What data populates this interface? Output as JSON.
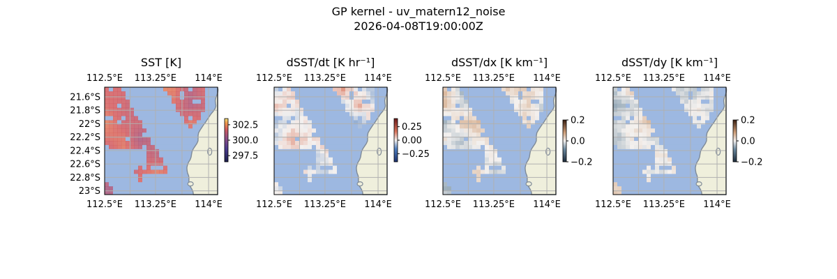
{
  "figure": {
    "title": "GP kernel - uv_matern12_noise",
    "subtitle": "2026-04-08T19:00:00Z"
  },
  "colors": {
    "ocean_mask": "#9db8e1",
    "land": "#efefdc",
    "coast": "#7f8a97",
    "grid": "#b0b0b0",
    "sst_low": "#6b4f8f",
    "sst_high": "#e0665c",
    "bal_neg": "#2f4a8a",
    "bal_pos": "#c64a3b"
  },
  "chart_data": [
    {
      "type": "heatmap",
      "title": "SST [K]",
      "xlim": [
        112.5,
        114.1
      ],
      "ylim": [
        -23.0,
        -21.5
      ],
      "xticks": [
        "112.5°E",
        "113.25°E",
        "114°E"
      ],
      "yticks": [
        "21.6°S",
        "21.8°S",
        "22°S",
        "22.2°S",
        "22.4°S",
        "22.6°S",
        "22.8°S",
        "23°S"
      ],
      "colorbar": {
        "ticks": [
          "302.5",
          "300.0",
          "297.5"
        ],
        "range": [
          296.5,
          303.5
        ],
        "cmap": "thermal"
      },
      "values": "SST field 297–303 K (mostly ~300–302 K), masked over large ocean patches and land"
    },
    {
      "type": "heatmap",
      "title": "dSST/dt [K hr⁻¹]",
      "xlim": [
        112.5,
        114.1
      ],
      "ylim": [
        -23.0,
        -21.5
      ],
      "xticks": [
        "112.5°E",
        "113.25°E",
        "114°E"
      ],
      "colorbar": {
        "ticks": [
          "0.25",
          "0.00",
          "−0.25"
        ],
        "range": [
          -0.4,
          0.4
        ],
        "cmap": "balance"
      },
      "values": "near-zero tendencies (-0.1 to 0.1), faint blue/red speckle"
    },
    {
      "type": "heatmap",
      "title": "dSST/dx [K km⁻¹]",
      "xlim": [
        112.5,
        114.1
      ],
      "ylim": [
        -23.0,
        -21.5
      ],
      "xticks": [
        "112.5°E",
        "113.25°E",
        "114°E"
      ],
      "colorbar": {
        "ticks": [
          "0.2",
          "0.0",
          "−0.2"
        ],
        "range": [
          -0.2,
          0.2
        ],
        "cmap": "diverging-dark"
      },
      "values": "near-zero zonal gradients"
    },
    {
      "type": "heatmap",
      "title": "dSST/dy [K km⁻¹]",
      "xlim": [
        112.5,
        114.1
      ],
      "ylim": [
        -23.0,
        -21.5
      ],
      "xticks": [
        "112.5°E",
        "113.25°E",
        "114°E"
      ],
      "colorbar": {
        "ticks": [
          "0.2",
          "0.0",
          "−0.2"
        ],
        "range": [
          -0.2,
          0.2
        ],
        "cmap": "diverging-dark"
      },
      "values": "near-zero meridional gradients"
    }
  ]
}
